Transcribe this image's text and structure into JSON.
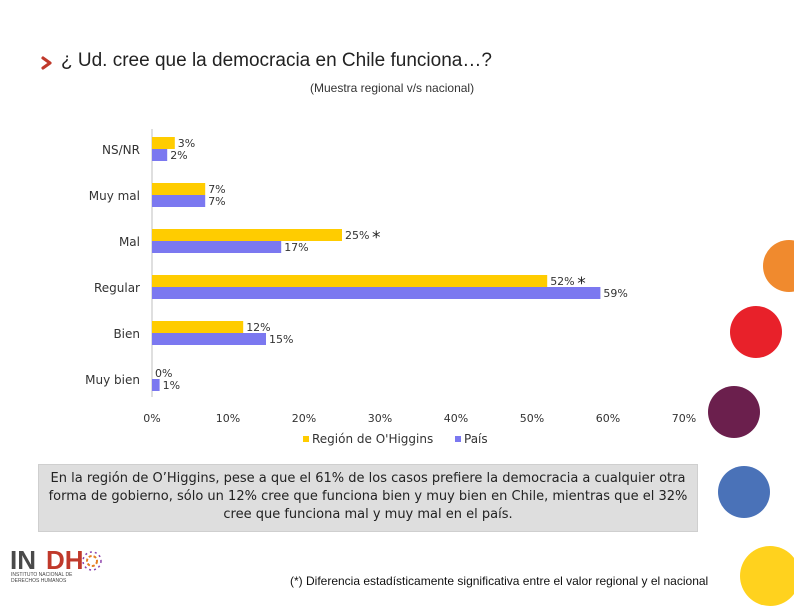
{
  "title": "¿ Ud. cree que la democracia en Chile funciona…?",
  "subtitle": "(Muestra regional v/s nacional)",
  "conclusion": "En la región de O’Higgins, pese a que el 61% de los casos prefiere la democracia a cualquier otra forma de gobierno, sólo un 12% cree que funciona bien y muy bien en Chile, mientras que el 32% cree que funciona mal y muy mal en el país.",
  "footnote": "(*) Diferencia estadísticamente significativa entre el valor regional y el nacional",
  "logo": {
    "text": "INDH",
    "subtitle_line1": "INSTITUTO NACIONAL DE",
    "subtitle_line2": "DERECHOS HUMANOS"
  },
  "colors": {
    "region": "#ffcc00",
    "country": "#7b78f0",
    "accent": "#c0392b"
  },
  "chart_data": {
    "type": "bar",
    "orientation": "horizontal",
    "categories": [
      "NS/NR",
      "Muy mal",
      "Mal",
      "Regular",
      "Bien",
      "Muy bien"
    ],
    "series": [
      {
        "name": "Región de O'Higgins",
        "values": [
          3,
          7,
          25,
          52,
          12,
          0
        ],
        "labels": [
          "3%",
          "7%",
          "25%",
          "52%",
          "12%",
          "0%"
        ]
      },
      {
        "name": "País",
        "values": [
          2,
          7,
          17,
          59,
          15,
          1
        ],
        "labels": [
          "2%",
          "7%",
          "17%",
          "59%",
          "15%",
          "1%"
        ]
      }
    ],
    "significant": [
      false,
      false,
      true,
      true,
      false,
      false
    ],
    "significance_marker": "*",
    "xlim": [
      0,
      70
    ],
    "xticks": [
      0,
      10,
      20,
      30,
      40,
      50,
      60,
      70
    ],
    "xtick_labels": [
      "0%",
      "10%",
      "20%",
      "30%",
      "40%",
      "50%",
      "60%",
      "70%"
    ],
    "legend_position": "bottom",
    "grid": false
  }
}
